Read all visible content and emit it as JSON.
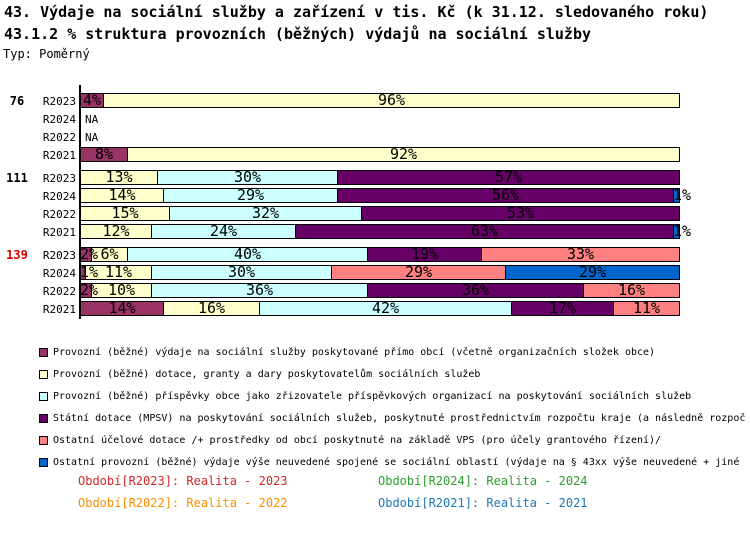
{
  "header": {
    "title_line1": "43. Výdaje na sociální služby a zařízení v tis. Kč (k 31.12. sledovaného roku)",
    "title_line2": "43.1.2 % struktura provozních (běžných) výdajů na sociální služby",
    "type_label": "Typ: Poměrný"
  },
  "na_label": "NA",
  "chart_data": {
    "type": "bar",
    "orientation": "horizontal",
    "stacked": true,
    "value_unit": "%",
    "xlim": [
      0,
      100
    ],
    "grid": false,
    "legend_position": "bottom",
    "series": [
      {
        "name": "Provozní (běžné) výdaje na sociální služby poskytované přímo obcí (včetně organizačních složek obce)",
        "color": "#993366"
      },
      {
        "name": "Provozní (běžné) dotace, granty a dary poskytovatelům sociálních služeb",
        "color": "#ffffcc"
      },
      {
        "name": "Provozní (běžné) příspěvky obce jako zřizovatele příspěvkových organizací na poskytování sociálních služeb",
        "color": "#ccffff"
      },
      {
        "name": "Státní dotace (MPSV) na poskytování sociálních služeb, poskytnuté prostřednictvím rozpočtu kraje (a následně rozpoč",
        "color": "#660066"
      },
      {
        "name": "Ostatní účelové dotace /+ prostředky od obcí poskytnuté na základě VPS (pro účely grantového řízení)/",
        "color": "#ff8080"
      },
      {
        "name": "Ostatní provozní (běžné) výdaje výše neuvedené spojené se sociální oblastí (výdaje na § 43xx výše neuvedené + jiné",
        "color": "#0066cc"
      }
    ],
    "groups": [
      {
        "label": "76",
        "label_color": "#000000",
        "rows": [
          {
            "period": "R2023",
            "segments": [
              [
                0,
                4
              ],
              [
                1,
                96
              ]
            ]
          },
          {
            "period": "R2024",
            "na": true
          },
          {
            "period": "R2022",
            "na": true
          },
          {
            "period": "R2021",
            "segments": [
              [
                0,
                8
              ],
              [
                1,
                92
              ]
            ]
          }
        ]
      },
      {
        "label": "111",
        "label_color": "#000000",
        "rows": [
          {
            "period": "R2023",
            "segments": [
              [
                1,
                13
              ],
              [
                2,
                30
              ],
              [
                3,
                57
              ]
            ]
          },
          {
            "period": "R2024",
            "segments": [
              [
                1,
                14
              ],
              [
                2,
                29
              ],
              [
                3,
                56
              ],
              [
                5,
                1
              ]
            ]
          },
          {
            "period": "R2022",
            "segments": [
              [
                1,
                15
              ],
              [
                2,
                32
              ],
              [
                3,
                53
              ]
            ]
          },
          {
            "period": "R2021",
            "segments": [
              [
                1,
                12
              ],
              [
                2,
                24
              ],
              [
                3,
                63
              ],
              [
                5,
                1
              ]
            ]
          }
        ]
      },
      {
        "label": "139",
        "label_color": "#d40000",
        "rows": [
          {
            "period": "R2023",
            "segments": [
              [
                0,
                2
              ],
              [
                1,
                6
              ],
              [
                2,
                40
              ],
              [
                3,
                19
              ],
              [
                4,
                33
              ]
            ]
          },
          {
            "period": "R2024",
            "segments": [
              [
                0,
                1
              ],
              [
                1,
                11
              ],
              [
                2,
                30
              ],
              [
                4,
                29
              ],
              [
                5,
                29
              ]
            ]
          },
          {
            "period": "R2022",
            "segments": [
              [
                0,
                2
              ],
              [
                1,
                10
              ],
              [
                2,
                36
              ],
              [
                3,
                36
              ],
              [
                4,
                16
              ]
            ]
          },
          {
            "period": "R2021",
            "segments": [
              [
                0,
                14
              ],
              [
                1,
                16
              ],
              [
                2,
                42
              ],
              [
                3,
                17
              ],
              [
                4,
                11
              ]
            ]
          }
        ]
      }
    ]
  },
  "footer": {
    "items": [
      {
        "label": "Období[R2023]: Realita - 2023",
        "color": "#d62728",
        "col": 0,
        "row": 0
      },
      {
        "label": "Období[R2024]: Realita - 2024",
        "color": "#2ca02c",
        "col": 1,
        "row": 0
      },
      {
        "label": "Období[R2022]: Realita - 2022",
        "color": "#ff8c00",
        "col": 0,
        "row": 1
      },
      {
        "label": "Období[R2021]: Realita - 2021",
        "color": "#1f77b4",
        "col": 1,
        "row": 1
      }
    ]
  }
}
